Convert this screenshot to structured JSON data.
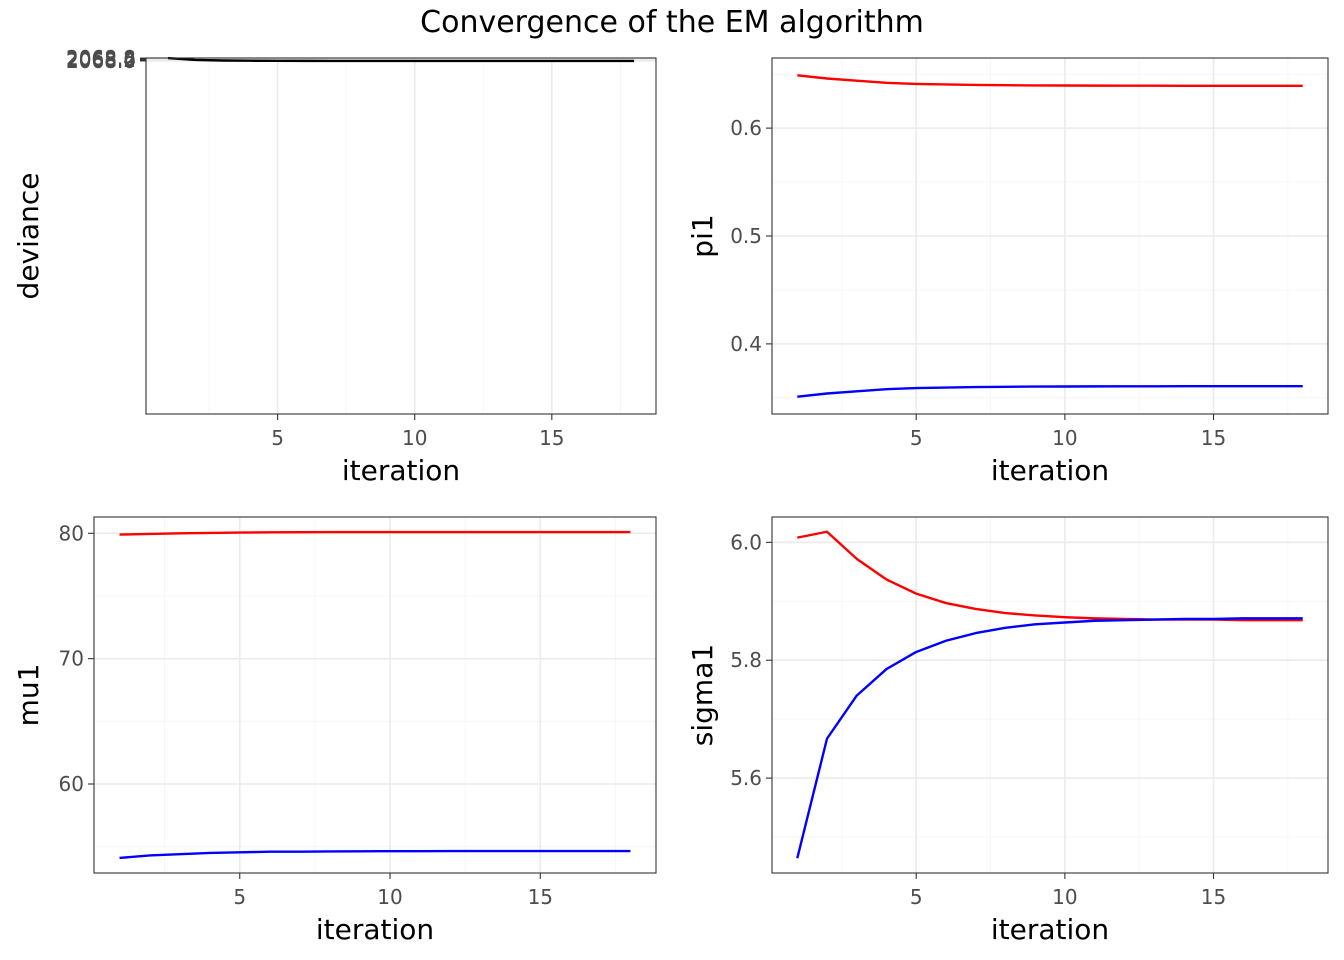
{
  "figure_title": "Convergence of the EM algorithm",
  "chart_data": [
    {
      "type": "line",
      "xlabel": "iteration",
      "ylabel": "deviance",
      "xlim": [
        0.2,
        18.8
      ],
      "ylim": [
        1967.96,
        2068.83
      ],
      "x_ticks": [
        5,
        10,
        15
      ],
      "x_tick_labels": [
        "5",
        "10",
        "15"
      ],
      "y_ticks": [
        2068.0,
        2068.2,
        2068.4,
        2068.6,
        2068.8
      ],
      "y_tick_labels": [
        "2068.0",
        "2068.2",
        "2068.4",
        "2068.6",
        "2068.8"
      ],
      "grid": true,
      "series": [
        {
          "color": "#000000",
          "x": [
            1,
            2,
            3,
            4,
            5,
            6,
            7,
            8,
            9,
            10,
            11,
            12,
            13,
            14,
            15,
            16,
            17,
            18
          ],
          "values": [
            2068.8,
            2068.275,
            2068.12,
            2068.057,
            2068.027,
            2068.013,
            2068.007,
            2068.004,
            2068.002,
            2068.001,
            2068.001,
            2068.0,
            2068.0,
            2068.0,
            2068.0,
            2068.0,
            2068.0,
            2068.0
          ]
        }
      ]
    },
    {
      "type": "line",
      "xlabel": "iteration",
      "ylabel": "pi1",
      "xlim": [
        0.15,
        18.85
      ],
      "ylim": [
        0.335,
        0.665
      ],
      "x_ticks": [
        5,
        10,
        15
      ],
      "x_tick_labels": [
        "5",
        "10",
        "15"
      ],
      "y_ticks": [
        0.4,
        0.5,
        0.6
      ],
      "y_tick_labels": [
        "0.4",
        "0.5",
        "0.6"
      ],
      "grid": true,
      "series": [
        {
          "color": "#ff0000",
          "x": [
            1,
            2,
            3,
            4,
            5,
            6,
            7,
            8,
            9,
            10,
            11,
            12,
            13,
            14,
            15,
            16,
            17,
            18
          ],
          "values": [
            0.649,
            0.646,
            0.644,
            0.642,
            0.641,
            0.6405,
            0.64,
            0.6398,
            0.6396,
            0.6395,
            0.6394,
            0.6393,
            0.6393,
            0.6392,
            0.6392,
            0.6392,
            0.6392,
            0.6392
          ]
        },
        {
          "color": "#0000ff",
          "x": [
            1,
            2,
            3,
            4,
            5,
            6,
            7,
            8,
            9,
            10,
            11,
            12,
            13,
            14,
            15,
            16,
            17,
            18
          ],
          "values": [
            0.351,
            0.354,
            0.356,
            0.358,
            0.359,
            0.3595,
            0.36,
            0.3602,
            0.3604,
            0.3605,
            0.3606,
            0.3607,
            0.3607,
            0.3608,
            0.3608,
            0.3608,
            0.3608,
            0.3608
          ]
        }
      ]
    },
    {
      "type": "line",
      "xlabel": "iteration",
      "ylabel": "mu1",
      "xlim": [
        0.15,
        18.85
      ],
      "ylim": [
        52.9,
        81.3
      ],
      "x_ticks": [
        5,
        10,
        15
      ],
      "x_tick_labels": [
        "5",
        "10",
        "15"
      ],
      "y_ticks": [
        60,
        70,
        80
      ],
      "y_tick_labels": [
        "60",
        "70",
        "80"
      ],
      "grid": true,
      "series": [
        {
          "color": "#ff0000",
          "x": [
            1,
            2,
            3,
            4,
            5,
            6,
            7,
            8,
            9,
            10,
            11,
            12,
            13,
            14,
            15,
            16,
            17,
            18
          ],
          "values": [
            79.9,
            79.95,
            80.0,
            80.03,
            80.06,
            80.08,
            80.09,
            80.1,
            80.1,
            80.1,
            80.1,
            80.1,
            80.1,
            80.1,
            80.1,
            80.1,
            80.1,
            80.1
          ]
        },
        {
          "color": "#0000ff",
          "x": [
            1,
            2,
            3,
            4,
            5,
            6,
            7,
            8,
            9,
            10,
            11,
            12,
            13,
            14,
            15,
            16,
            17,
            18
          ],
          "values": [
            54.1,
            54.3,
            54.4,
            54.5,
            54.55,
            54.6,
            54.6,
            54.62,
            54.63,
            54.64,
            54.64,
            54.65,
            54.65,
            54.65,
            54.65,
            54.65,
            54.65,
            54.65
          ]
        }
      ]
    },
    {
      "type": "line",
      "xlabel": "iteration",
      "ylabel": "sigma1",
      "xlim": [
        0.15,
        18.85
      ],
      "ylim": [
        5.439,
        6.043
      ],
      "x_ticks": [
        5,
        10,
        15
      ],
      "x_tick_labels": [
        "5",
        "10",
        "15"
      ],
      "y_ticks": [
        5.6,
        5.8,
        6.0
      ],
      "y_tick_labels": [
        "5.6",
        "5.8",
        "6.0"
      ],
      "grid": true,
      "series": [
        {
          "color": "#ff0000",
          "x": [
            1,
            2,
            3,
            4,
            5,
            6,
            7,
            8,
            9,
            10,
            11,
            12,
            13,
            14,
            15,
            16,
            17,
            18
          ],
          "values": [
            6.008,
            6.018,
            5.972,
            5.937,
            5.913,
            5.897,
            5.887,
            5.88,
            5.876,
            5.873,
            5.871,
            5.87,
            5.869,
            5.869,
            5.869,
            5.868,
            5.868,
            5.868
          ]
        },
        {
          "color": "#0000ff",
          "x": [
            1,
            2,
            3,
            4,
            5,
            6,
            7,
            8,
            9,
            10,
            11,
            12,
            13,
            14,
            15,
            16,
            17,
            18
          ],
          "values": [
            5.464,
            5.667,
            5.74,
            5.785,
            5.814,
            5.833,
            5.846,
            5.855,
            5.861,
            5.864,
            5.867,
            5.868,
            5.869,
            5.87,
            5.87,
            5.871,
            5.871,
            5.871
          ]
        }
      ]
    }
  ]
}
